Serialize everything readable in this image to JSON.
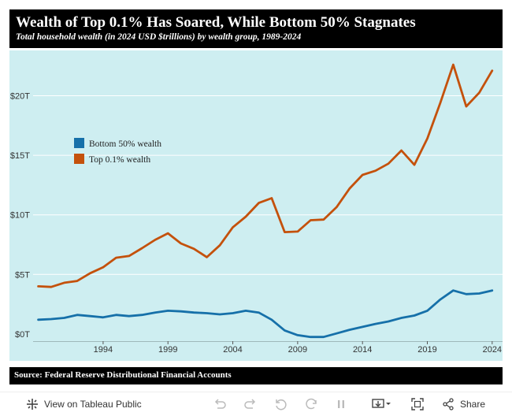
{
  "header": {
    "title": "Wealth of Top 0.1% Has Soared, While Bottom 50% Stagnates",
    "subtitle": "Total household wealth (in 2024 USD $trillions) by wealth group, 1989-2024"
  },
  "footer": {
    "source": "Source: Federal Reserve Distributional Financial Accounts"
  },
  "toolbar": {
    "view_label": "View on Tableau Public",
    "share_label": "Share"
  },
  "chart_data": {
    "type": "line",
    "title": "Wealth of Top 0.1% Has Soared, While Bottom 50% Stagnates",
    "subtitle": "Total household wealth (in 2024 USD $trillions) by wealth group, 1989-2024",
    "xlabel": "",
    "ylabel": "",
    "xlim": [
      1988.6,
      2024.8
    ],
    "ylim": [
      -0.6,
      23.8
    ],
    "x_ticks": [
      1994,
      1999,
      2004,
      2009,
      2014,
      2019,
      2024
    ],
    "x_tick_labels": [
      "1994",
      "1999",
      "2004",
      "2009",
      "2014",
      "2019",
      "2024"
    ],
    "y_ticks": [
      0,
      5,
      10,
      15,
      20
    ],
    "y_tick_labels": [
      "$0T",
      "$5T",
      "$10T",
      "$15T",
      "$20T"
    ],
    "grid": true,
    "legend_position": "upper-left",
    "x": [
      1989,
      1990,
      1991,
      1992,
      1993,
      1994,
      1995,
      1996,
      1997,
      1998,
      1999,
      2000,
      2001,
      2002,
      2003,
      2004,
      2005,
      2006,
      2007,
      2008,
      2009,
      2010,
      2011,
      2012,
      2013,
      2014,
      2015,
      2016,
      2017,
      2018,
      2019,
      2020,
      2021,
      2022,
      2023,
      2024
    ],
    "series": [
      {
        "name": "Bottom 50% wealth",
        "color": "#1670a9",
        "values": [
          1.2,
          1.25,
          1.35,
          1.6,
          1.5,
          1.4,
          1.6,
          1.5,
          1.6,
          1.8,
          1.95,
          1.9,
          1.8,
          1.75,
          1.65,
          1.75,
          1.95,
          1.8,
          1.2,
          0.3,
          -0.1,
          -0.25,
          -0.25,
          0.05,
          0.35,
          0.6,
          0.85,
          1.05,
          1.35,
          1.55,
          1.95,
          2.9,
          3.65,
          3.35,
          3.4,
          3.65
        ]
      },
      {
        "name": "Top 0.1% wealth",
        "color": "#c4510c",
        "values": [
          4.0,
          3.95,
          4.3,
          4.45,
          5.1,
          5.6,
          6.4,
          6.55,
          7.2,
          7.9,
          8.45,
          7.6,
          7.15,
          6.45,
          7.45,
          8.95,
          9.85,
          11.0,
          11.4,
          8.55,
          8.6,
          9.55,
          9.6,
          10.65,
          12.2,
          13.35,
          13.7,
          14.3,
          15.4,
          14.2,
          16.4,
          19.4,
          22.6,
          19.1,
          20.25,
          22.1
        ]
      }
    ]
  }
}
